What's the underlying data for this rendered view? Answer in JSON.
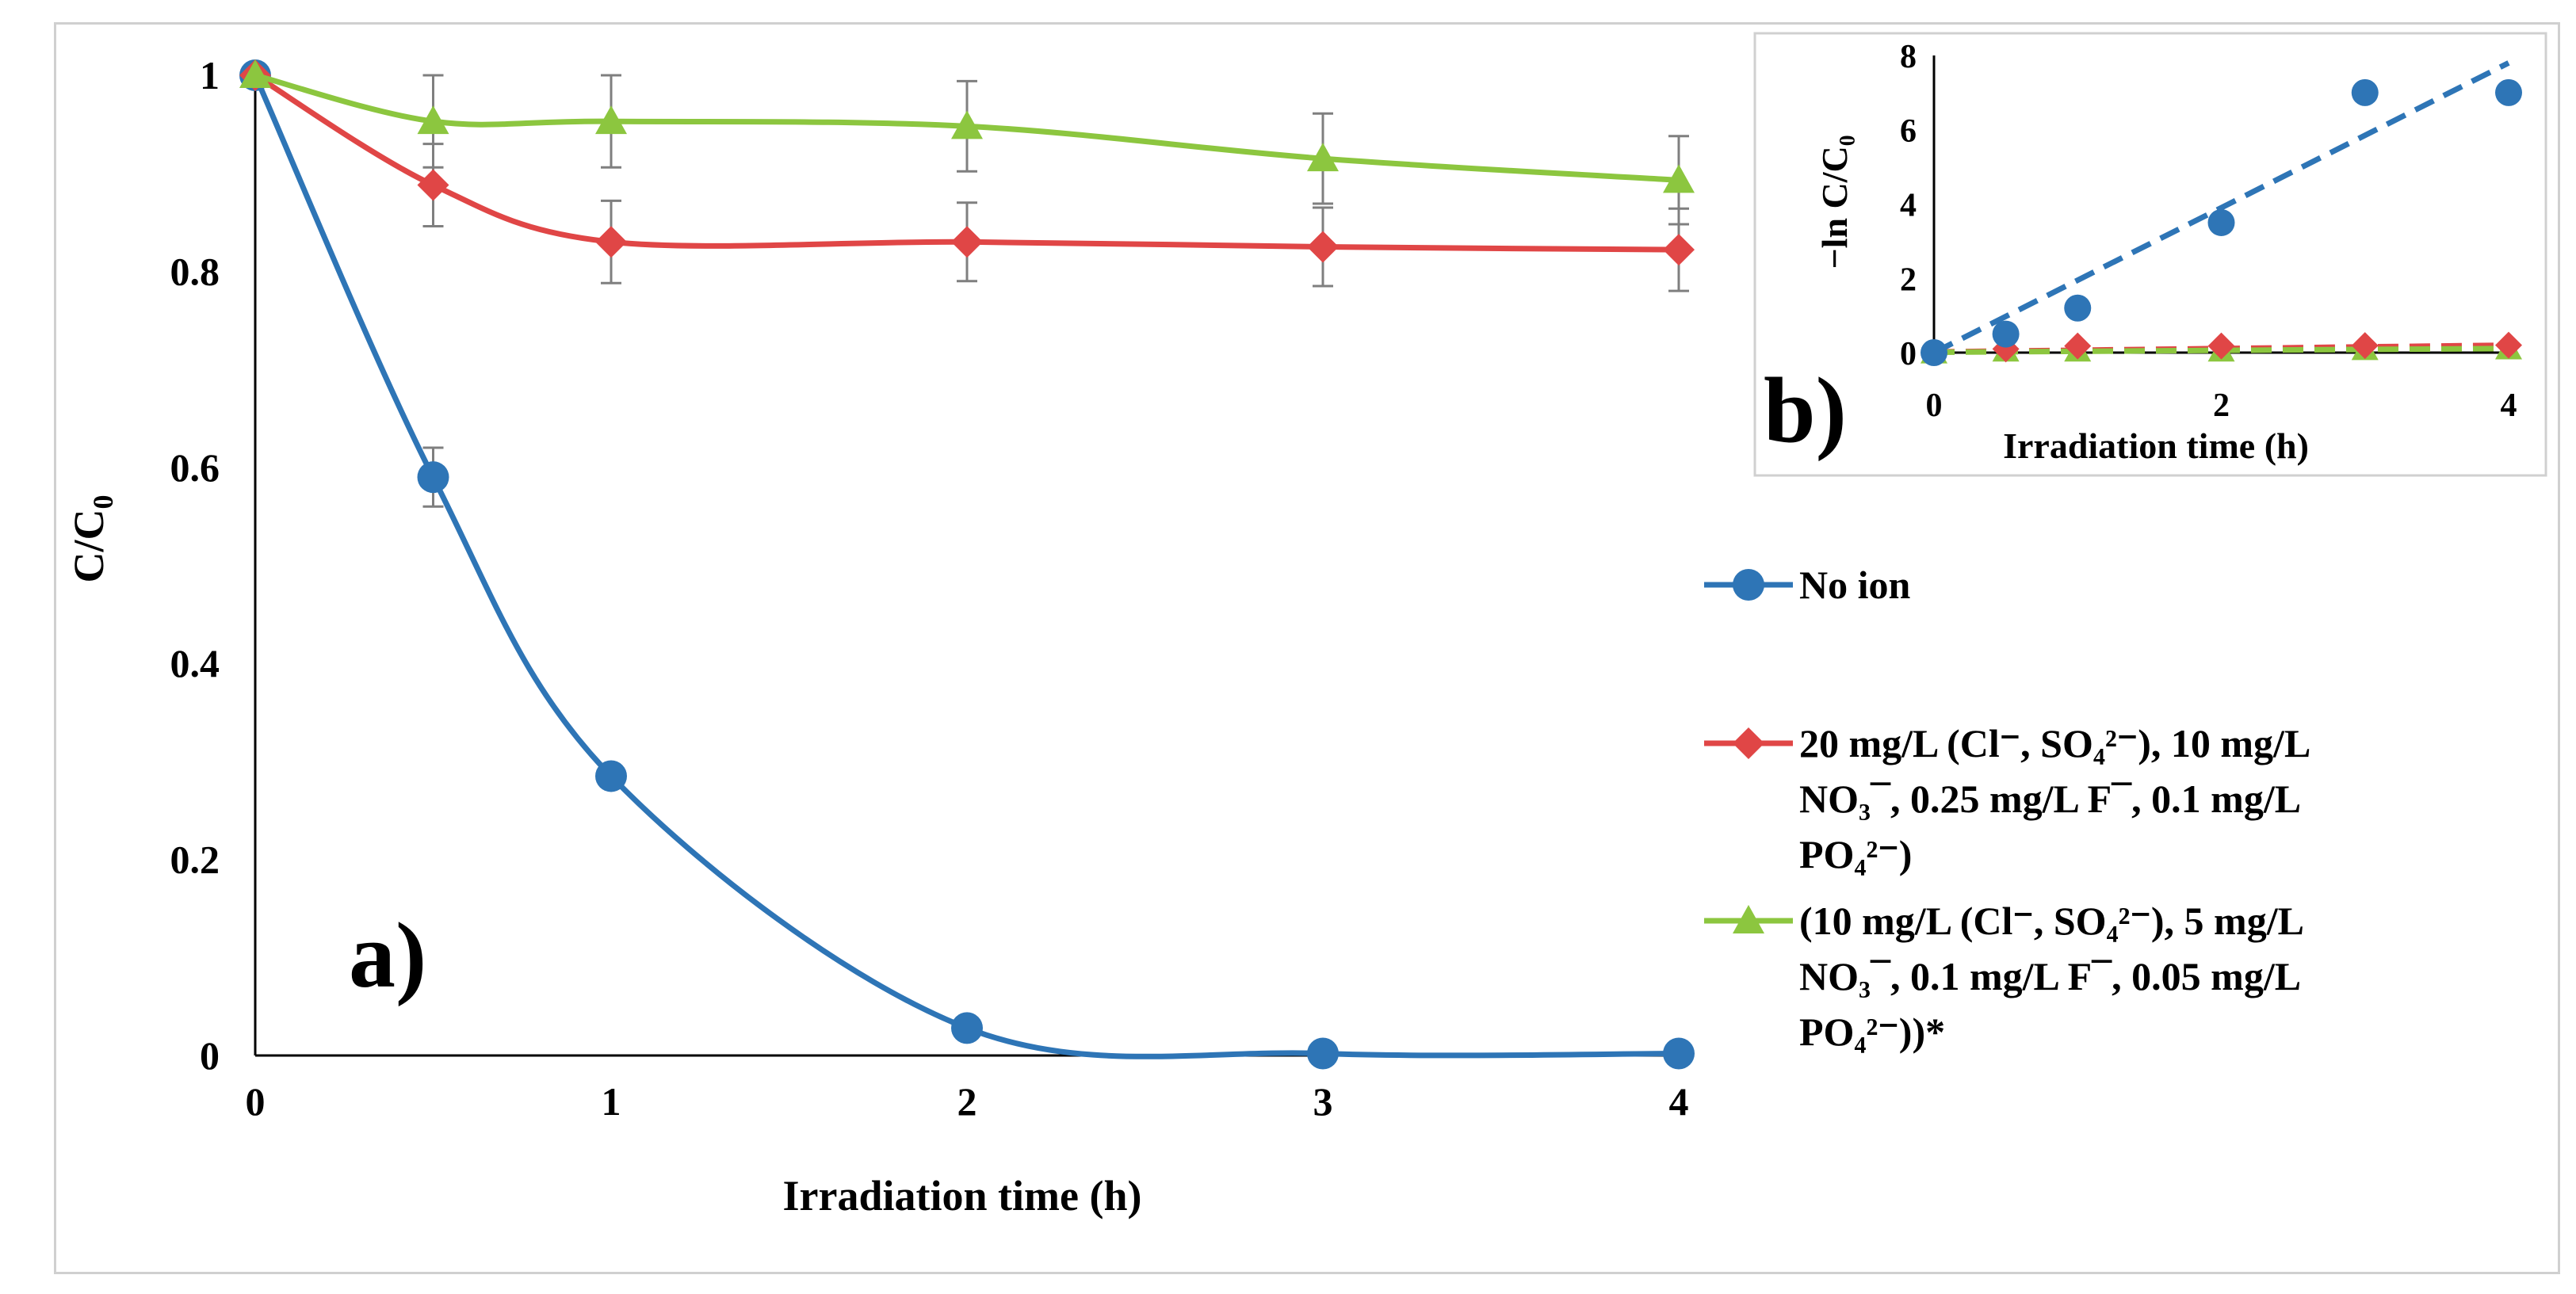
{
  "chart_data": [
    {
      "type": "line",
      "panel_label": "a)",
      "xlabel": "Irradiation  time (h)",
      "ylabel": {
        "main": "C/C",
        "sub": "0"
      },
      "x": [
        0,
        0.5,
        1,
        2,
        3,
        4
      ],
      "xticks": [
        0,
        1,
        2,
        3,
        4
      ],
      "yticks": [
        0,
        0.2,
        0.4,
        0.6,
        0.8,
        1
      ],
      "ytick_labels": [
        "0",
        "0.2",
        "0.4",
        "0.6",
        "0.8",
        "1"
      ],
      "xlim": [
        0,
        4
      ],
      "ylim": [
        0,
        1
      ],
      "series": [
        {
          "name": "No ion",
          "color": "#2e75b6",
          "marker": "circle",
          "values": [
            1.0,
            0.59,
            0.285,
            0.028,
            0.002,
            0.002
          ],
          "errors": [
            0,
            0.03,
            0,
            0,
            0,
            0
          ]
        },
        {
          "name": "20 mg/L (Cl⁻, SO₄²⁻), 10 mg/L NO₃¯, 0.25 mg/L F¯, 0.1 mg/L PO₄²⁻)",
          "color": "#e04646",
          "marker": "diamond",
          "values": [
            1.0,
            0.888,
            0.83,
            0.83,
            0.825,
            0.822
          ],
          "errors": [
            0,
            0.042,
            0.042,
            0.04,
            0.04,
            0.042
          ]
        },
        {
          "name": "(10 mg/L (Cl⁻, SO₄²⁻), 5 mg/L NO₃¯, 0.1 mg/L F¯, 0.05 mg/L PO₄²⁻))*",
          "color": "#8cc63f",
          "marker": "triangle",
          "values": [
            1.0,
            0.953,
            0.953,
            0.948,
            0.915,
            0.893
          ],
          "errors": [
            0,
            0.047,
            0.047,
            0.046,
            0.046,
            0.045
          ]
        }
      ],
      "legend": {
        "entries": [
          {
            "lines": [
              "No ion"
            ]
          },
          {
            "lines": [
              "20 mg/L (Cl⁻, SO₄²⁻), 10 mg/L",
              "NO₃¯, 0.25 mg/L F¯, 0.1 mg/L",
              "PO₄²⁻)"
            ]
          },
          {
            "lines": [
              "(10 mg/L (Cl⁻, SO₄²⁻), 5 mg/L",
              "NO₃¯, 0.1 mg/L F¯, 0.05 mg/L",
              "PO₄²⁻))*"
            ]
          }
        ]
      }
    },
    {
      "type": "scatter",
      "panel_label": "b)",
      "xlabel": "Irradiation time (h)",
      "ylabel": "−ln C/C₀",
      "x": [
        0,
        0.5,
        1,
        2,
        3,
        4
      ],
      "xticks": [
        0,
        2,
        4
      ],
      "yticks": [
        0,
        2,
        4,
        6,
        8
      ],
      "xlim": [
        0,
        4
      ],
      "ylim": [
        0,
        8
      ],
      "series": [
        {
          "name": "No ion",
          "color": "#2e75b6",
          "marker": "circle",
          "values": [
            0,
            0.5,
            1.2,
            3.5,
            7.0,
            7.0
          ],
          "trendline": {
            "from": [
              0,
              0
            ],
            "to": [
              4,
              7.8
            ],
            "style": "dashed"
          }
        },
        {
          "name": "20 mg/L",
          "color": "#e04646",
          "marker": "diamond",
          "values": [
            0,
            0.1,
            0.18,
            0.18,
            0.19,
            0.2
          ],
          "trendline": {
            "from": [
              0,
              0.02
            ],
            "to": [
              4,
              0.2
            ],
            "style": "dashed"
          }
        },
        {
          "name": "10 mg/L",
          "color": "#8cc63f",
          "marker": "triangle",
          "values": [
            0,
            0.05,
            0.05,
            0.05,
            0.09,
            0.11
          ],
          "trendline": {
            "from": [
              0,
              0.01
            ],
            "to": [
              4,
              0.11
            ],
            "style": "dashed"
          }
        }
      ]
    }
  ]
}
